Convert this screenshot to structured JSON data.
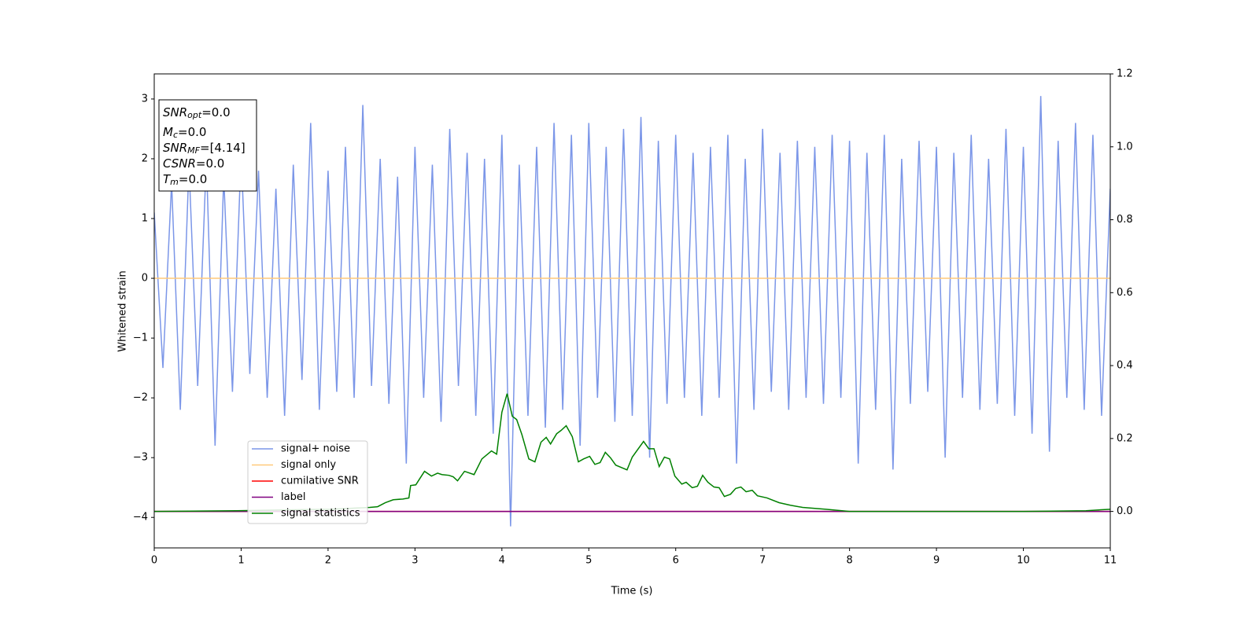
{
  "chart_data": {
    "type": "line",
    "xlabel": "Time (s)",
    "ylabel": "Whitened strain",
    "xlim": [
      0,
      11
    ],
    "xticks": [
      0,
      1,
      2,
      3,
      4,
      5,
      6,
      7,
      8,
      9,
      10,
      11
    ],
    "ylim": [
      -4.51,
      3.42
    ],
    "yticks": [
      {
        "value": -4,
        "label": "−4"
      },
      {
        "value": -3,
        "label": "−3"
      },
      {
        "value": -2,
        "label": "−2"
      },
      {
        "value": -1,
        "label": "−1"
      },
      0,
      1,
      2,
      3
    ],
    "y2lim": [
      -0.1,
      1.2
    ],
    "y2ticks": [
      {
        "value": 0,
        "label": "0.0"
      },
      0.2,
      0.4,
      0.6,
      0.8,
      {
        "value": 1,
        "label": "1.0"
      },
      1.2
    ],
    "annotations": [
      {
        "main": "SNR",
        "sub": "opt",
        "rest": "=0.0"
      },
      {
        "main": "M",
        "sub": "c",
        "rest": "=0.0"
      },
      {
        "main": "SNR",
        "sub": "MF",
        "rest": "=[4.14]"
      },
      {
        "main": "CSNR",
        "rest": "=0.0"
      },
      {
        "main": "T",
        "sub": "m",
        "rest": "=0.0"
      }
    ],
    "series": [
      {
        "name": "signal+ noise",
        "color": "#7b96e8",
        "x": [
          0,
          0.1,
          0.2,
          0.3,
          0.4,
          0.5,
          0.6,
          0.7,
          0.8,
          0.9,
          1,
          1.1,
          1.2,
          1.3,
          1.4,
          1.5,
          1.6,
          1.7,
          1.8,
          1.9,
          2,
          2.1,
          2.2,
          2.3,
          2.4,
          2.5,
          2.6,
          2.7,
          2.8,
          2.9,
          3,
          3.1,
          3.2,
          3.3,
          3.4,
          3.5,
          3.6,
          3.7,
          3.8,
          3.9,
          4,
          4.1,
          4.2,
          4.3,
          4.4,
          4.5,
          4.6,
          4.7,
          4.8,
          4.9,
          5,
          5.1,
          5.2,
          5.3,
          5.4,
          5.5,
          5.6,
          5.7,
          5.8,
          5.9,
          6,
          6.1,
          6.2,
          6.3,
          6.4,
          6.5,
          6.6,
          6.7,
          6.8,
          6.9,
          7,
          7.1,
          7.2,
          7.3,
          7.4,
          7.5,
          7.6,
          7.7,
          7.8,
          7.9,
          8,
          8.1,
          8.2,
          8.3,
          8.4,
          8.5,
          8.6,
          8.7,
          8.8,
          8.9,
          9,
          9.1,
          9.2,
          9.3,
          9.4,
          9.5,
          9.6,
          9.7,
          9.8,
          9.9,
          10,
          10.1,
          10.2,
          10.3,
          10.4,
          10.5,
          10.6,
          10.7,
          10.8,
          10.9,
          11
        ],
        "values": [
          1.1,
          -1.5,
          1.6,
          -2.2,
          1.9,
          -1.8,
          2.0,
          -2.8,
          1.7,
          -1.9,
          2.1,
          -1.6,
          1.8,
          -2.0,
          1.5,
          -2.3,
          1.9,
          -1.7,
          2.6,
          -2.2,
          1.8,
          -1.9,
          2.2,
          -2.0,
          2.9,
          -1.8,
          2.0,
          -2.1,
          1.7,
          -3.1,
          2.2,
          -2.0,
          1.9,
          -2.4,
          2.5,
          -1.8,
          2.1,
          -2.3,
          2.0,
          -2.6,
          2.4,
          -4.15,
          1.9,
          -2.3,
          2.2,
          -2.5,
          2.6,
          -2.2,
          2.4,
          -2.8,
          2.6,
          -2.0,
          2.2,
          -2.4,
          2.5,
          -2.3,
          2.7,
          -3.0,
          2.3,
          -2.1,
          2.4,
          -2.0,
          2.1,
          -2.3,
          2.2,
          -2.0,
          2.4,
          -3.1,
          2.0,
          -2.2,
          2.5,
          -1.9,
          2.1,
          -2.2,
          2.3,
          -2.0,
          2.2,
          -2.1,
          2.4,
          -2.0,
          2.3,
          -3.1,
          2.1,
          -2.2,
          2.4,
          -3.2,
          2.0,
          -2.1,
          2.3,
          -1.9,
          2.2,
          -3.0,
          2.1,
          -2.0,
          2.4,
          -2.2,
          2.0,
          -2.1,
          2.5,
          -2.3,
          2.2,
          -2.6,
          3.05,
          -2.9,
          2.3,
          -2.0,
          2.6,
          -2.2,
          2.4,
          -2.3,
          1.5
        ]
      },
      {
        "name": "signal only",
        "color": "#ffc97a",
        "x": [
          0,
          11
        ],
        "values": [
          0,
          0
        ]
      },
      {
        "name": "cumilative SNR",
        "color": "red",
        "axis": "y2",
        "x": [
          0,
          11
        ],
        "values": [
          0,
          0
        ]
      },
      {
        "name": "label",
        "color": "purple",
        "axis": "y2",
        "x": [
          0,
          11
        ],
        "values": [
          0,
          0
        ]
      },
      {
        "name": "signal statistics",
        "color": "green",
        "axis": "y2",
        "x": [
          0,
          0.94,
          2.03,
          2.48,
          2.57,
          2.66,
          2.75,
          2.86,
          2.93,
          2.95,
          3.01,
          3.05,
          3.11,
          3.19,
          3.26,
          3.31,
          3.39,
          3.44,
          3.49,
          3.57,
          3.68,
          3.77,
          3.88,
          3.94,
          4.0,
          4.06,
          4.12,
          4.17,
          4.23,
          4.31,
          4.38,
          4.45,
          4.51,
          4.56,
          4.63,
          4.68,
          4.74,
          4.81,
          4.88,
          4.94,
          5.01,
          5.07,
          5.13,
          5.19,
          5.25,
          5.31,
          5.39,
          5.44,
          5.5,
          5.63,
          5.69,
          5.75,
          5.81,
          5.87,
          5.93,
          5.99,
          6.07,
          6.12,
          6.19,
          6.25,
          6.31,
          6.37,
          6.44,
          6.5,
          6.56,
          6.63,
          6.69,
          6.75,
          6.81,
          6.88,
          6.94,
          7.05,
          7.19,
          7.32,
          7.46,
          7.73,
          8.0,
          9.09,
          10.0,
          10.72,
          11.0
        ],
        "values": [
          0,
          0.002,
          0.006,
          0.011,
          0.013,
          0.024,
          0.032,
          0.034,
          0.037,
          0.071,
          0.073,
          0.088,
          0.11,
          0.097,
          0.105,
          0.101,
          0.099,
          0.095,
          0.084,
          0.11,
          0.101,
          0.144,
          0.166,
          0.157,
          0.272,
          0.323,
          0.261,
          0.252,
          0.211,
          0.144,
          0.136,
          0.19,
          0.203,
          0.185,
          0.213,
          0.222,
          0.235,
          0.205,
          0.136,
          0.144,
          0.151,
          0.129,
          0.134,
          0.162,
          0.147,
          0.127,
          0.119,
          0.114,
          0.149,
          0.192,
          0.172,
          0.172,
          0.123,
          0.149,
          0.144,
          0.097,
          0.075,
          0.08,
          0.065,
          0.069,
          0.099,
          0.08,
          0.067,
          0.065,
          0.041,
          0.047,
          0.063,
          0.067,
          0.054,
          0.058,
          0.043,
          0.037,
          0.024,
          0.017,
          0.011,
          0.006,
          0,
          0,
          0,
          0.002,
          0.006
        ]
      }
    ]
  }
}
